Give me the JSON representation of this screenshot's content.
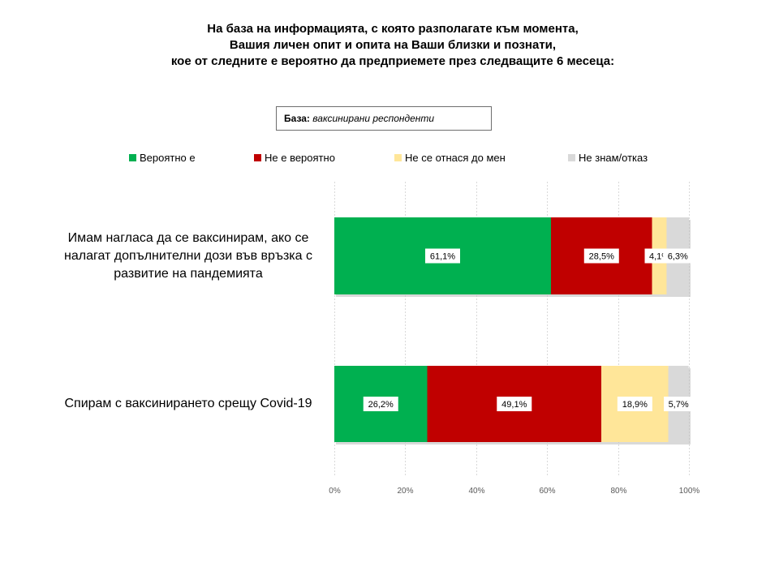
{
  "title": {
    "lines": [
      "На база на информацията, с която разполагате към момента,",
      "Вашия личен опит и опита на Ваши близки и познати,",
      "кое от следните е вероятно да предприемете през следващите 6 месеца:"
    ]
  },
  "base_note": {
    "label": "База:",
    "value": "ваксинирани респонденти"
  },
  "chart_data": {
    "type": "bar",
    "orientation": "horizontal",
    "stacked": "percent",
    "categories": [
      "Имам нагласа да се ваксинирам, ако се налагат допълнителни дози във връзка с развитие на пандемията",
      "Спирам с ваксинирането срещу Covid-19"
    ],
    "series": [
      {
        "name": "Вероятно е",
        "color": "#00b050",
        "values": [
          61.1,
          26.2
        ],
        "labels": [
          "61,1%",
          "26,2%"
        ]
      },
      {
        "name": "Не е вероятно",
        "color": "#c00000",
        "values": [
          28.5,
          49.1
        ],
        "labels": [
          "28,5%",
          "49,1%"
        ]
      },
      {
        "name": "Не се отнася до мен",
        "color": "#ffe699",
        "values": [
          4.1,
          18.9
        ],
        "labels": [
          "4,1%",
          "18,9%"
        ]
      },
      {
        "name": "Не знам/отказ",
        "color": "#d9d9d9",
        "values": [
          6.3,
          5.7
        ],
        "labels": [
          "6,3%",
          "5,7%"
        ]
      }
    ],
    "xlim": [
      0,
      100
    ],
    "xticks": [
      "0%",
      "20%",
      "40%",
      "60%",
      "80%",
      "100%"
    ],
    "grid": true,
    "legend": "top"
  }
}
